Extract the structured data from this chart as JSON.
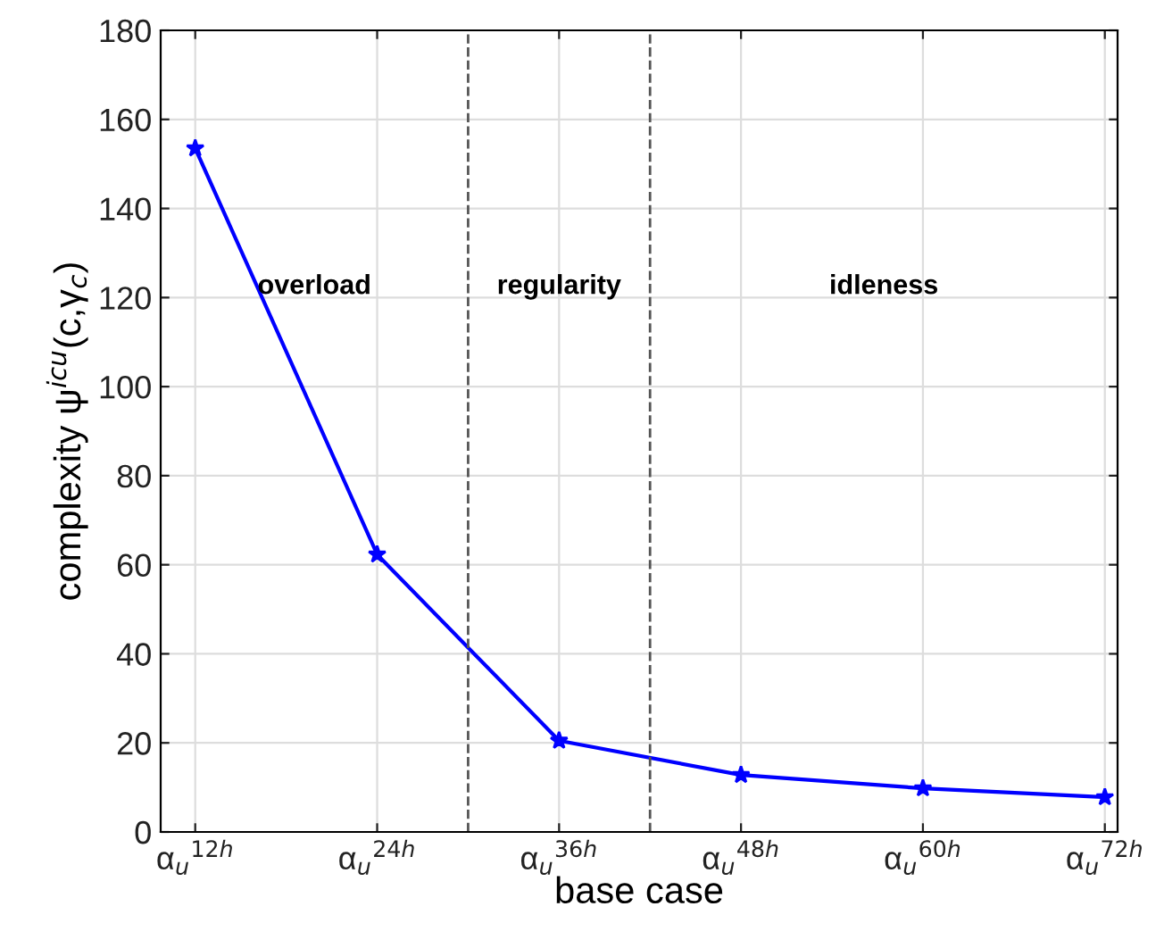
{
  "chart_data": {
    "type": "line",
    "xlabel": "base case",
    "ylabel": "complexity ψ$^{icu}$(c,γ$_{c}$)",
    "categories": [
      "α$_{u}$$^{12h}$",
      "α$_{u}$$^{24h}$",
      "α$_{u}$$^{36h}$",
      "α$_{u}$$^{48h}$",
      "α$_{u}$$^{60h}$",
      "α$_{u}$$^{72h}$"
    ],
    "series": [
      {
        "color": "#0000ff",
        "values": [
          153.5,
          62.3,
          20.5,
          12.8,
          9.8,
          7.8
        ]
      }
    ],
    "ylim": [
      0,
      180
    ],
    "yticks": [
      0,
      20,
      40,
      60,
      80,
      100,
      120,
      140,
      160,
      180
    ],
    "annotations": [
      "overload",
      "regularity",
      "idleness"
    ],
    "grid": true,
    "marker": "star",
    "line_style": "solid"
  }
}
